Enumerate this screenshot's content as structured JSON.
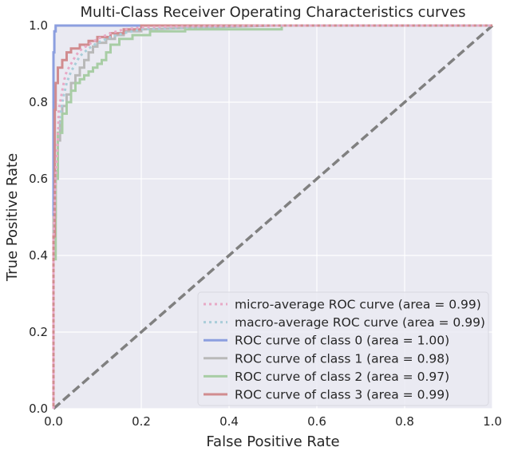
{
  "chart_data": {
    "type": "line",
    "title": "Multi-Class Receiver Operating Characteristics curves",
    "xlabel": "False Positive Rate",
    "ylabel": "True Positive Rate",
    "xlim": [
      0.0,
      1.0
    ],
    "ylim": [
      0.0,
      1.0
    ],
    "x_ticks": [
      "0.0",
      "0.2",
      "0.4",
      "0.6",
      "0.8",
      "1.0"
    ],
    "y_ticks": [
      "0.0",
      "0.2",
      "0.4",
      "0.6",
      "0.8",
      "1.0"
    ],
    "grid": true,
    "legend_position": "lower-right",
    "series": [
      {
        "name": "micro-average ROC curve (area = 0.99)",
        "color": "#e8a9c6",
        "style": "dotted",
        "x": [
          0.0,
          0.0,
          0.005,
          0.01,
          0.012,
          0.02,
          0.025,
          0.03,
          0.04,
          0.05,
          0.06,
          0.08,
          0.1,
          0.13,
          0.16,
          0.2,
          0.3,
          0.5,
          1.0
        ],
        "y": [
          0.0,
          0.45,
          0.6,
          0.7,
          0.78,
          0.83,
          0.86,
          0.88,
          0.9,
          0.92,
          0.935,
          0.95,
          0.965,
          0.98,
          0.99,
          0.995,
          0.998,
          1.0,
          1.0
        ]
      },
      {
        "name": "macro-average ROC curve (area = 0.99)",
        "color": "#a9cdd9",
        "style": "dotted",
        "x": [
          0.0,
          0.0,
          0.005,
          0.01,
          0.015,
          0.02,
          0.03,
          0.04,
          0.05,
          0.06,
          0.08,
          0.1,
          0.13,
          0.16,
          0.2,
          0.3,
          0.5,
          1.0
        ],
        "y": [
          0.0,
          0.45,
          0.6,
          0.7,
          0.76,
          0.8,
          0.85,
          0.88,
          0.9,
          0.92,
          0.94,
          0.955,
          0.97,
          0.98,
          0.99,
          0.995,
          1.0,
          1.0
        ]
      },
      {
        "name": "ROC curve of class 0 (area = 1.00)",
        "color": "#8c9fdf",
        "style": "solid",
        "x": [
          0.0,
          0.0,
          0.002,
          0.002,
          0.005,
          0.005,
          1.0
        ],
        "y": [
          0.0,
          0.93,
          0.93,
          0.985,
          0.985,
          1.0,
          1.0
        ]
      },
      {
        "name": "ROC curve of class 1 (area = 0.98)",
        "color": "#b9b9b9",
        "style": "solid",
        "x": [
          0.0,
          0.0,
          0.005,
          0.005,
          0.01,
          0.01,
          0.015,
          0.015,
          0.02,
          0.02,
          0.03,
          0.03,
          0.04,
          0.04,
          0.05,
          0.05,
          0.06,
          0.06,
          0.07,
          0.07,
          0.08,
          0.08,
          0.09,
          0.09,
          0.1,
          0.1,
          0.12,
          0.12,
          0.14,
          0.14,
          0.16,
          0.16,
          0.2,
          0.2,
          0.5,
          1.0
        ],
        "y": [
          0.0,
          0.5,
          0.5,
          0.62,
          0.62,
          0.7,
          0.7,
          0.75,
          0.75,
          0.79,
          0.79,
          0.82,
          0.82,
          0.85,
          0.85,
          0.87,
          0.87,
          0.89,
          0.89,
          0.91,
          0.91,
          0.93,
          0.93,
          0.945,
          0.945,
          0.955,
          0.955,
          0.965,
          0.965,
          0.975,
          0.975,
          0.985,
          0.985,
          0.99,
          1.0,
          1.0
        ]
      },
      {
        "name": "ROC curve of class 2 (area = 0.97)",
        "color": "#a8cda5",
        "style": "solid",
        "x": [
          0.0,
          0.0,
          0.005,
          0.005,
          0.01,
          0.01,
          0.02,
          0.02,
          0.03,
          0.03,
          0.04,
          0.04,
          0.05,
          0.05,
          0.06,
          0.06,
          0.07,
          0.07,
          0.08,
          0.08,
          0.09,
          0.09,
          0.1,
          0.1,
          0.11,
          0.11,
          0.12,
          0.12,
          0.13,
          0.13,
          0.15,
          0.15,
          0.18,
          0.18,
          0.22,
          0.22,
          0.3,
          0.3,
          0.52,
          0.52,
          1.0
        ],
        "y": [
          0.0,
          0.39,
          0.39,
          0.6,
          0.6,
          0.72,
          0.72,
          0.77,
          0.77,
          0.8,
          0.8,
          0.83,
          0.83,
          0.85,
          0.85,
          0.86,
          0.86,
          0.87,
          0.87,
          0.88,
          0.88,
          0.89,
          0.89,
          0.9,
          0.9,
          0.91,
          0.91,
          0.93,
          0.93,
          0.95,
          0.95,
          0.965,
          0.965,
          0.975,
          0.975,
          0.985,
          0.985,
          0.99,
          0.99,
          1.0,
          1.0
        ]
      },
      {
        "name": "ROC curve of class 3 (area = 0.99)",
        "color": "#d18c8f",
        "style": "solid",
        "x": [
          0.0,
          0.0,
          0.003,
          0.003,
          0.005,
          0.005,
          0.01,
          0.01,
          0.02,
          0.02,
          0.03,
          0.03,
          0.04,
          0.04,
          0.06,
          0.06,
          0.08,
          0.08,
          0.1,
          0.1,
          0.13,
          0.13,
          0.16,
          0.16,
          0.2,
          0.2,
          1.0
        ],
        "y": [
          0.0,
          0.45,
          0.45,
          0.78,
          0.78,
          0.85,
          0.85,
          0.89,
          0.89,
          0.91,
          0.91,
          0.93,
          0.93,
          0.94,
          0.94,
          0.95,
          0.95,
          0.96,
          0.96,
          0.97,
          0.97,
          0.98,
          0.98,
          0.99,
          0.99,
          1.0,
          1.0
        ]
      },
      {
        "name": "",
        "color": "#808080",
        "style": "dashed",
        "x": [
          0.0,
          1.0
        ],
        "y": [
          0.0,
          1.0
        ]
      }
    ]
  }
}
